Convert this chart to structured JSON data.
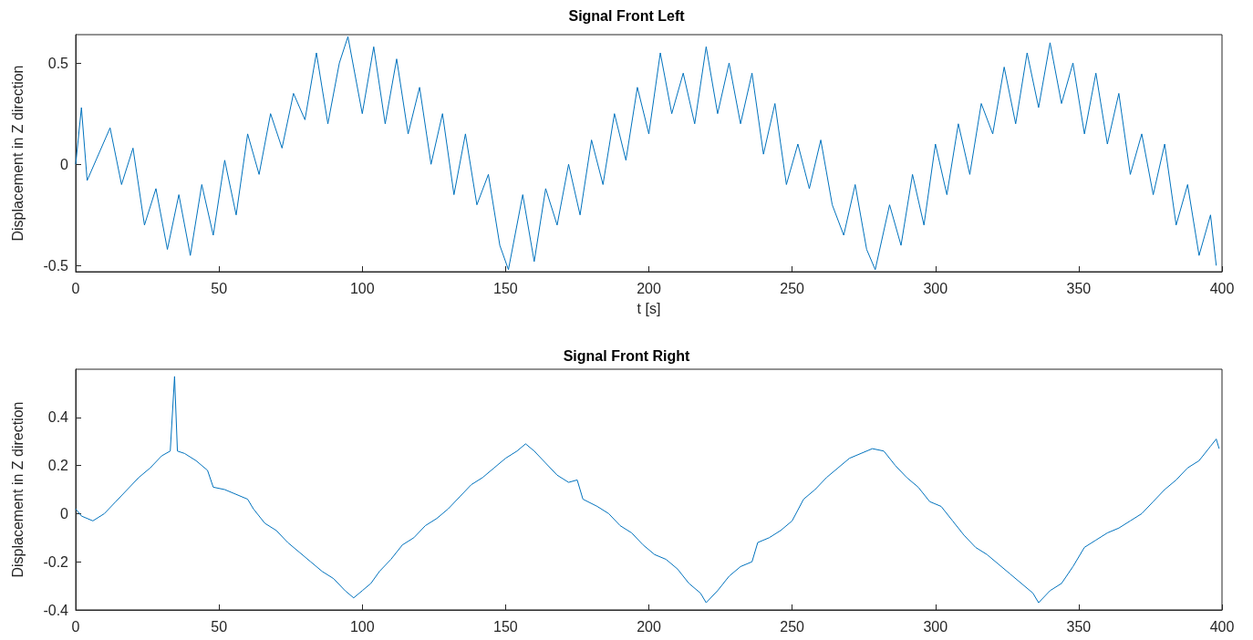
{
  "chart_data": [
    {
      "type": "line",
      "title": "Signal Front Left",
      "xlabel": "t [s]",
      "ylabel": "Displacement in Z direction",
      "marker": "none",
      "color": "#0072bd",
      "x": [
        0,
        2,
        4,
        8,
        12,
        16,
        20,
        24,
        28,
        32,
        36,
        40,
        44,
        48,
        52,
        56,
        60,
        64,
        68,
        72,
        76,
        80,
        84,
        88,
        92,
        95,
        100,
        104,
        108,
        112,
        116,
        120,
        124,
        128,
        132,
        136,
        140,
        144,
        148,
        151,
        156,
        160,
        164,
        168,
        172,
        176,
        180,
        184,
        188,
        192,
        196,
        200,
        204,
        208,
        212,
        216,
        220,
        224,
        228,
        232,
        236,
        240,
        244,
        248,
        252,
        256,
        260,
        264,
        268,
        272,
        276,
        279,
        284,
        288,
        292,
        296,
        300,
        304,
        308,
        312,
        316,
        320,
        324,
        328,
        332,
        336,
        340,
        344,
        348,
        352,
        356,
        360,
        364,
        368,
        372,
        376,
        380,
        384,
        388,
        392,
        396,
        398
      ],
      "values": [
        0.0,
        0.28,
        -0.08,
        0.05,
        0.18,
        -0.1,
        0.08,
        -0.3,
        -0.12,
        -0.42,
        -0.15,
        -0.45,
        -0.1,
        -0.35,
        0.02,
        -0.25,
        0.15,
        -0.05,
        0.25,
        0.08,
        0.35,
        0.22,
        0.55,
        0.2,
        0.5,
        0.63,
        0.25,
        0.58,
        0.2,
        0.52,
        0.15,
        0.38,
        0.0,
        0.25,
        -0.15,
        0.15,
        -0.2,
        -0.05,
        -0.4,
        -0.52,
        -0.15,
        -0.48,
        -0.12,
        -0.3,
        0.0,
        -0.25,
        0.12,
        -0.1,
        0.25,
        0.02,
        0.38,
        0.15,
        0.55,
        0.25,
        0.45,
        0.2,
        0.58,
        0.25,
        0.5,
        0.2,
        0.45,
        0.05,
        0.3,
        -0.1,
        0.1,
        -0.12,
        0.12,
        -0.2,
        -0.35,
        -0.1,
        -0.42,
        -0.52,
        -0.2,
        -0.4,
        -0.05,
        -0.3,
        0.1,
        -0.15,
        0.2,
        -0.05,
        0.3,
        0.15,
        0.48,
        0.2,
        0.55,
        0.28,
        0.6,
        0.3,
        0.5,
        0.15,
        0.45,
        0.1,
        0.35,
        -0.05,
        0.15,
        -0.15,
        0.1,
        -0.3,
        -0.1,
        -0.45,
        -0.25,
        -0.5
      ],
      "xlim": [
        0,
        400
      ],
      "xticks": [
        0,
        50,
        100,
        150,
        200,
        250,
        300,
        350,
        400
      ],
      "ylim": [
        -0.53,
        0.64
      ],
      "yticks": [
        -0.5,
        0,
        0.5
      ]
    },
    {
      "type": "line",
      "title": "Signal Front Right",
      "ylabel": "Displacement in Z direction",
      "marker": "none",
      "color": "#0072bd",
      "x": [
        0,
        2,
        6,
        10,
        14,
        18,
        22,
        26,
        30,
        33,
        34.5,
        35.5,
        38,
        42,
        46,
        48,
        52,
        56,
        60,
        62,
        66,
        70,
        74,
        78,
        82,
        86,
        90,
        94,
        97,
        100,
        103,
        106,
        110,
        114,
        118,
        122,
        126,
        130,
        134,
        138,
        142,
        146,
        150,
        154,
        157,
        160,
        164,
        168,
        172,
        175,
        177,
        182,
        186,
        190,
        194,
        198,
        202,
        206,
        210,
        214,
        218,
        220,
        224,
        228,
        232,
        236,
        238,
        242,
        246,
        250,
        254,
        258,
        262,
        266,
        270,
        274,
        278,
        282,
        286,
        290,
        294,
        298,
        302,
        306,
        310,
        314,
        318,
        322,
        326,
        330,
        334,
        336,
        340,
        344,
        348,
        352,
        356,
        360,
        364,
        368,
        372,
        376,
        380,
        384,
        388,
        392,
        396,
        398,
        399
      ],
      "values": [
        0.02,
        -0.01,
        -0.03,
        0.0,
        0.05,
        0.1,
        0.15,
        0.19,
        0.24,
        0.26,
        0.57,
        0.26,
        0.25,
        0.22,
        0.18,
        0.11,
        0.1,
        0.08,
        0.06,
        0.02,
        -0.04,
        -0.07,
        -0.12,
        -0.16,
        -0.2,
        -0.24,
        -0.27,
        -0.32,
        -0.35,
        -0.32,
        -0.29,
        -0.24,
        -0.19,
        -0.13,
        -0.1,
        -0.05,
        -0.02,
        0.02,
        0.07,
        0.12,
        0.15,
        0.19,
        0.23,
        0.26,
        0.29,
        0.26,
        0.21,
        0.16,
        0.13,
        0.14,
        0.06,
        0.03,
        0.0,
        -0.05,
        -0.08,
        -0.13,
        -0.17,
        -0.19,
        -0.23,
        -0.29,
        -0.33,
        -0.37,
        -0.32,
        -0.26,
        -0.22,
        -0.2,
        -0.12,
        -0.1,
        -0.07,
        -0.03,
        0.06,
        0.1,
        0.15,
        0.19,
        0.23,
        0.25,
        0.27,
        0.26,
        0.2,
        0.15,
        0.11,
        0.05,
        0.03,
        -0.03,
        -0.09,
        -0.14,
        -0.17,
        -0.21,
        -0.25,
        -0.29,
        -0.33,
        -0.37,
        -0.32,
        -0.29,
        -0.22,
        -0.14,
        -0.11,
        -0.08,
        -0.06,
        -0.03,
        0.0,
        0.05,
        0.1,
        0.14,
        0.19,
        0.22,
        0.28,
        0.31,
        0.27
      ],
      "xlim": [
        0,
        400
      ],
      "xticks": [
        0,
        50,
        100,
        150,
        200,
        250,
        300,
        350,
        400
      ],
      "ylim": [
        -0.4,
        0.6
      ],
      "yticks": [
        -0.4,
        -0.2,
        0,
        0.2,
        0.4
      ]
    }
  ]
}
